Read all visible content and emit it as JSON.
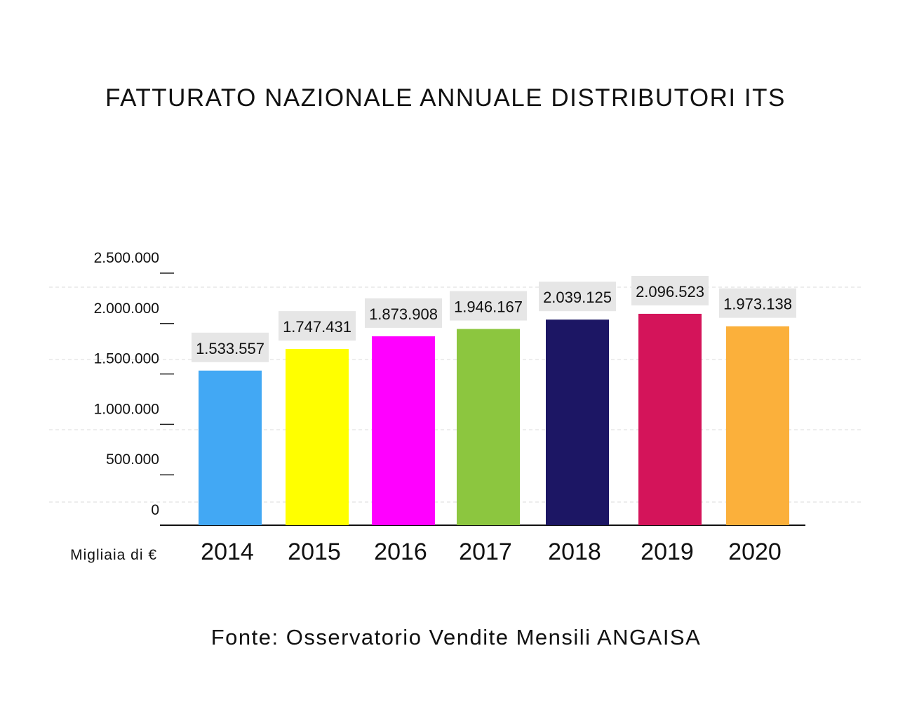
{
  "chart_data": {
    "type": "bar",
    "title": "FATTURATO NAZIONALE ANNUALE DISTRIBUTORI ITS",
    "xlabel": "",
    "ylabel": "Migliaia di €",
    "categories": [
      "2014",
      "2015",
      "2016",
      "2017",
      "2018",
      "2019",
      "2020"
    ],
    "values": [
      1533557,
      1747431,
      1873908,
      1946167,
      2039125,
      2096523,
      1973138
    ],
    "value_labels": [
      "1.533.557",
      "1.747.431",
      "1.873.908",
      "1.946.167",
      "2.039.125",
      "2.096.523",
      "1.973.138"
    ],
    "colors": [
      "#42a8f4",
      "#ffff00",
      "#ff00ff",
      "#8cc63f",
      "#1c1664",
      "#d4145a",
      "#fbb03b"
    ],
    "ylim": [
      0,
      2500000
    ],
    "yticks": [
      0,
      500000,
      1000000,
      1500000,
      2000000,
      2500000
    ],
    "ytick_labels": [
      "0",
      "500.000",
      "1.000.000",
      "1.500.000",
      "2.000.000",
      "2.500.000"
    ],
    "grid": true,
    "legend": "none",
    "source": "Fonte: Osservatorio Vendite Mensili ANGAISA"
  }
}
